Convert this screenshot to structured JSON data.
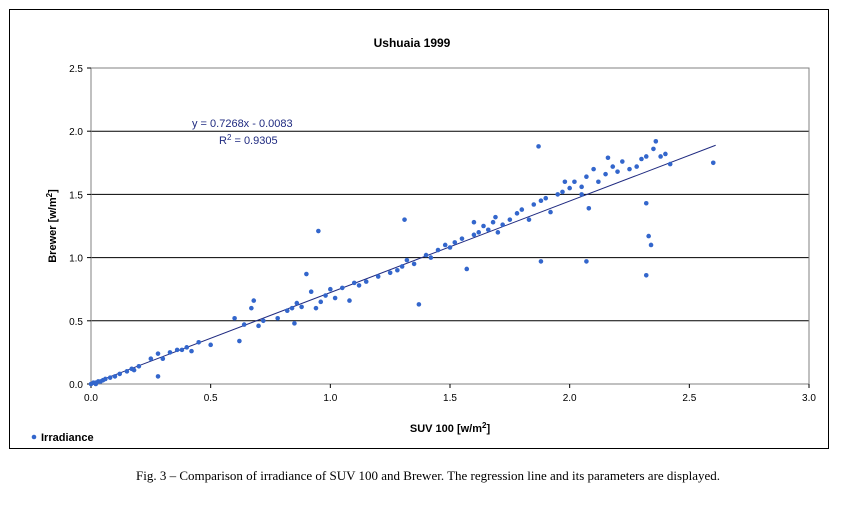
{
  "chart_data": {
    "type": "scatter",
    "title": "Ushuaia 1999",
    "xlabel": "SUV 100  [w/m²]",
    "ylabel": "Brewer [w/m²]",
    "xlim": [
      0,
      3.0
    ],
    "ylim": [
      0,
      2.5
    ],
    "x_ticks": [
      "0.0",
      "0.5",
      "1.0",
      "1.5",
      "2.0",
      "2.5",
      "3.0"
    ],
    "y_ticks": [
      "0.0",
      "0.5",
      "1.0",
      "1.5",
      "2.0",
      "2.5"
    ],
    "grid": "horizontal",
    "legend": {
      "placement": "bottom-left",
      "entries": [
        "Irradiance"
      ]
    },
    "series": [
      {
        "name": "Irradiance",
        "color": "#3366cc",
        "points": [
          [
            0.0,
            0.0
          ],
          [
            0.01,
            0.01
          ],
          [
            0.02,
            0.0
          ],
          [
            0.03,
            0.02
          ],
          [
            0.04,
            0.02
          ],
          [
            0.05,
            0.03
          ],
          [
            0.02,
            0.01
          ],
          [
            0.06,
            0.04
          ],
          [
            0.08,
            0.05
          ],
          [
            0.1,
            0.06
          ],
          [
            0.12,
            0.08
          ],
          [
            0.15,
            0.1
          ],
          [
            0.17,
            0.12
          ],
          [
            0.2,
            0.14
          ],
          [
            0.18,
            0.11
          ],
          [
            0.25,
            0.2
          ],
          [
            0.28,
            0.24
          ],
          [
            0.3,
            0.2
          ],
          [
            0.33,
            0.25
          ],
          [
            0.36,
            0.27
          ],
          [
            0.38,
            0.27
          ],
          [
            0.4,
            0.29
          ],
          [
            0.42,
            0.26
          ],
          [
            0.45,
            0.33
          ],
          [
            0.5,
            0.31
          ],
          [
            0.6,
            0.52
          ],
          [
            0.62,
            0.34
          ],
          [
            0.64,
            0.47
          ],
          [
            0.67,
            0.6
          ],
          [
            0.68,
            0.66
          ],
          [
            0.7,
            0.46
          ],
          [
            0.72,
            0.5
          ],
          [
            0.78,
            0.52
          ],
          [
            0.82,
            0.58
          ],
          [
            0.84,
            0.6
          ],
          [
            0.85,
            0.48
          ],
          [
            0.86,
            0.64
          ],
          [
            0.88,
            0.61
          ],
          [
            0.9,
            0.87
          ],
          [
            0.92,
            0.73
          ],
          [
            0.94,
            0.6
          ],
          [
            0.96,
            0.65
          ],
          [
            0.98,
            0.7
          ],
          [
            1.0,
            0.75
          ],
          [
            1.02,
            0.68
          ],
          [
            1.05,
            0.76
          ],
          [
            1.08,
            0.66
          ],
          [
            1.1,
            0.8
          ],
          [
            1.12,
            0.78
          ],
          [
            1.15,
            0.81
          ],
          [
            1.2,
            0.85
          ],
          [
            1.25,
            0.88
          ],
          [
            1.28,
            0.9
          ],
          [
            1.3,
            0.93
          ],
          [
            1.32,
            0.98
          ],
          [
            1.35,
            0.95
          ],
          [
            1.37,
            0.63
          ],
          [
            1.4,
            1.02
          ],
          [
            1.42,
            1.0
          ],
          [
            1.45,
            1.06
          ],
          [
            1.48,
            1.1
          ],
          [
            1.5,
            1.08
          ],
          [
            1.52,
            1.12
          ],
          [
            1.55,
            1.15
          ],
          [
            1.57,
            0.91
          ],
          [
            1.6,
            1.18
          ],
          [
            1.62,
            1.2
          ],
          [
            1.64,
            1.25
          ],
          [
            1.66,
            1.22
          ],
          [
            1.68,
            1.28
          ],
          [
            1.7,
            1.2
          ],
          [
            1.72,
            1.26
          ],
          [
            1.75,
            1.3
          ],
          [
            1.78,
            1.35
          ],
          [
            1.8,
            1.38
          ],
          [
            1.83,
            1.3
          ],
          [
            1.85,
            1.42
          ],
          [
            1.88,
            1.45
          ],
          [
            1.9,
            1.47
          ],
          [
            1.92,
            1.36
          ],
          [
            1.95,
            1.5
          ],
          [
            1.97,
            1.52
          ],
          [
            2.0,
            1.55
          ],
          [
            2.02,
            1.6
          ],
          [
            2.05,
            1.56
          ],
          [
            2.07,
            1.64
          ],
          [
            2.1,
            1.7
          ],
          [
            2.12,
            1.6
          ],
          [
            2.15,
            1.66
          ],
          [
            2.18,
            1.72
          ],
          [
            2.2,
            1.68
          ],
          [
            2.22,
            1.76
          ],
          [
            2.25,
            1.7
          ],
          [
            2.28,
            1.72
          ],
          [
            2.3,
            1.78
          ],
          [
            2.32,
            1.8
          ],
          [
            2.35,
            1.86
          ],
          [
            2.36,
            1.92
          ],
          [
            2.38,
            1.8
          ],
          [
            2.4,
            1.82
          ],
          [
            2.42,
            1.74
          ],
          [
            2.6,
            1.75
          ],
          [
            1.87,
            1.88
          ],
          [
            0.95,
            1.21
          ],
          [
            1.31,
            1.3
          ],
          [
            2.07,
            0.97
          ],
          [
            1.88,
            0.97
          ],
          [
            2.33,
            1.17
          ],
          [
            2.34,
            1.1
          ],
          [
            2.32,
            0.86
          ],
          [
            2.32,
            1.43
          ],
          [
            2.08,
            1.39
          ],
          [
            1.6,
            1.28
          ],
          [
            1.69,
            1.32
          ],
          [
            1.98,
            1.6
          ],
          [
            2.05,
            1.5
          ],
          [
            2.16,
            1.79
          ],
          [
            0.28,
            0.06
          ]
        ]
      }
    ],
    "trendline": {
      "slope": 0.7268,
      "intercept": -0.0083,
      "x_range": [
        0,
        2.61
      ],
      "equation": "y = 0.7268x - 0.0083",
      "r2_label": "R",
      "r2_value": " = 0.9305",
      "color": "#1f2a80"
    }
  },
  "caption": "Fig. 3 – Comparison of irradiance of SUV 100 and Brewer. The regression line and its parameters are displayed."
}
